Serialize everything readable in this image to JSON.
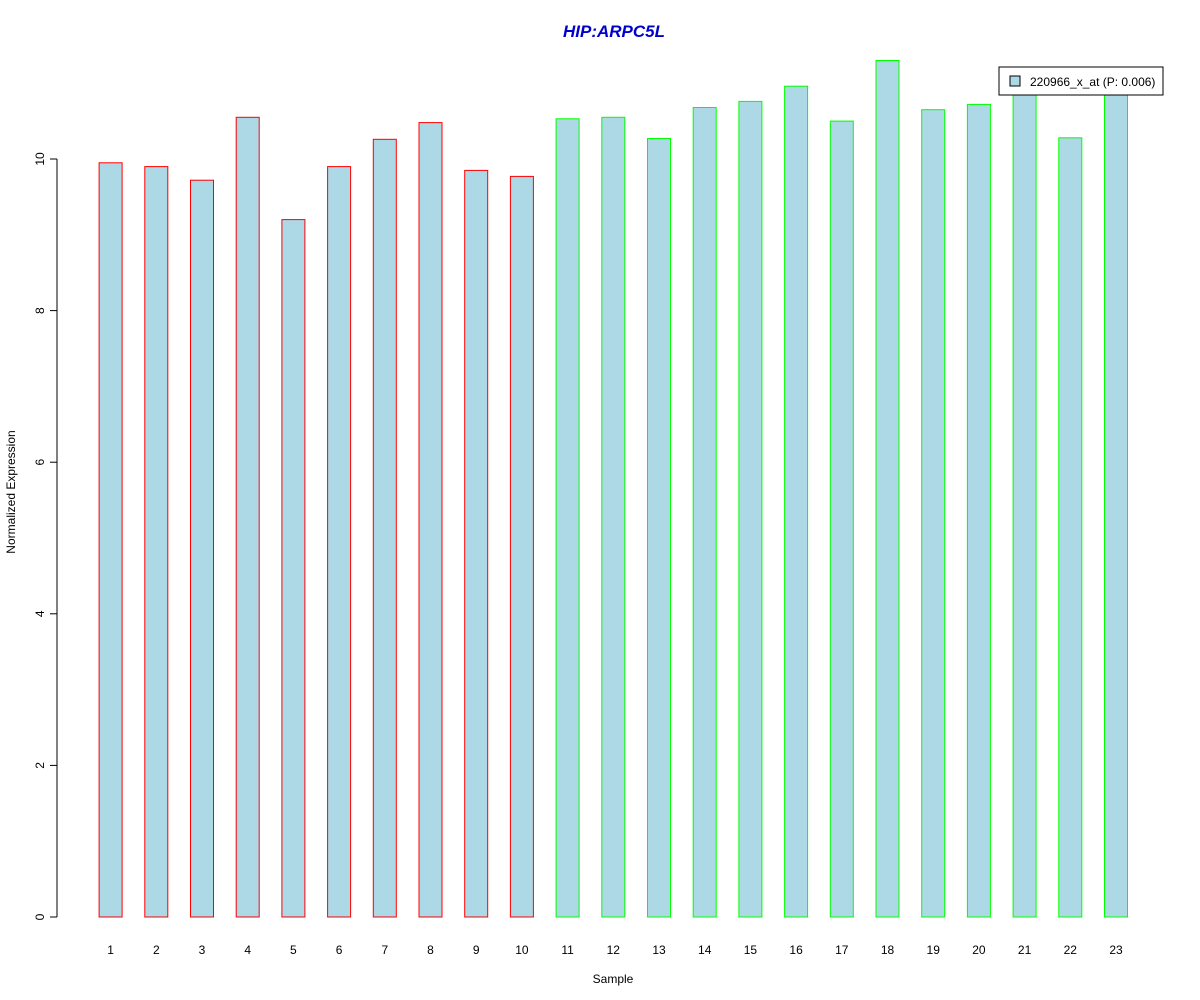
{
  "chart_data": {
    "type": "bar",
    "title": "HIP:ARPC5L",
    "xlabel": "Sample",
    "ylabel": "Normalized Expression",
    "categories": [
      "1",
      "2",
      "3",
      "4",
      "5",
      "6",
      "7",
      "8",
      "9",
      "10",
      "11",
      "12",
      "13",
      "14",
      "15",
      "16",
      "17",
      "18",
      "19",
      "20",
      "21",
      "22",
      "23"
    ],
    "series": [
      {
        "name": "220966_x_at (P: 0.006)",
        "values": [
          9.95,
          9.9,
          9.72,
          10.55,
          9.2,
          9.9,
          10.26,
          10.48,
          9.85,
          9.77,
          10.53,
          10.55,
          10.27,
          10.68,
          10.76,
          10.96,
          10.5,
          11.3,
          10.65,
          10.72,
          10.9,
          10.28,
          10.9
        ]
      }
    ],
    "bar_fill": "#add8e6",
    "bar_outlines": [
      "#ff0000",
      "#ff0000",
      "#ff0000",
      "#ff0000",
      "#ff0000",
      "#ff0000",
      "#ff0000",
      "#ff0000",
      "#ff0000",
      "#ff0000",
      "#00ff00",
      "#00ff00",
      "#00ff00",
      "#00ff00",
      "#00ff00",
      "#00ff00",
      "#00ff00",
      "#00ff00",
      "#00ff00",
      "#00ff00",
      "#00ff00",
      "#00ff00",
      "#00ff00"
    ],
    "title_color": "#0000cd",
    "ylim": [
      0,
      11.3
    ],
    "yticks": [
      "0",
      "2",
      "4",
      "6",
      "8",
      "10"
    ],
    "grid": false,
    "legend_position": "top-right"
  }
}
